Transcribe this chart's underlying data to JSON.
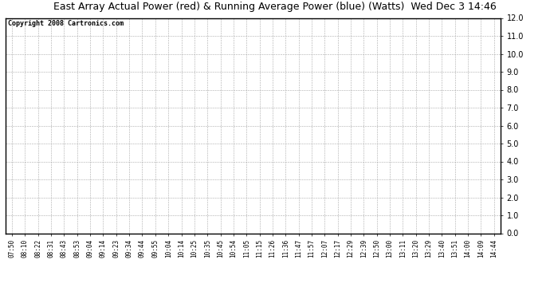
{
  "title": "East Array Actual Power (red) & Running Average Power (blue) (Watts)  Wed Dec 3 14:46",
  "copyright_text": "Copyright 2008 Cartronics.com",
  "ylim": [
    0.0,
    12.0
  ],
  "yticks": [
    0.0,
    1.0,
    2.0,
    3.0,
    4.0,
    5.0,
    6.0,
    7.0,
    8.0,
    9.0,
    10.0,
    11.0,
    12.0
  ],
  "xtick_labels": [
    "07:50",
    "08:10",
    "08:22",
    "08:31",
    "08:43",
    "08:53",
    "09:04",
    "09:14",
    "09:23",
    "09:34",
    "09:44",
    "09:55",
    "10:04",
    "10:14",
    "10:25",
    "10:35",
    "10:45",
    "10:54",
    "11:05",
    "11:15",
    "11:26",
    "11:36",
    "11:47",
    "11:57",
    "12:07",
    "12:17",
    "12:29",
    "12:39",
    "12:50",
    "13:00",
    "13:11",
    "13:20",
    "13:29",
    "13:40",
    "13:51",
    "14:00",
    "14:09",
    "14:44"
  ],
  "background_color": "#ffffff",
  "plot_bg_color": "#ffffff",
  "grid_color": "#aaaaaa",
  "title_fontsize": 9,
  "copyright_fontsize": 6,
  "xtick_fontsize": 5.5,
  "ytick_fontsize": 7
}
